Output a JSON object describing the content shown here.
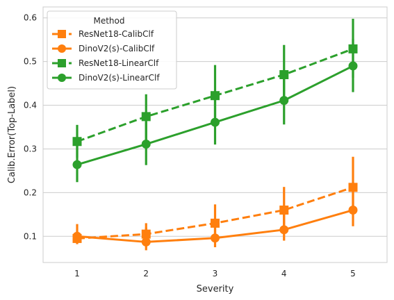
{
  "chart_data": {
    "type": "line",
    "xlabel": "Severity",
    "ylabel": "Calib.Error(Top-Label)",
    "categories": [
      "1",
      "2",
      "3",
      "4",
      "5"
    ],
    "ylim": [
      0.04,
      0.625
    ],
    "yticks": [
      "0.1",
      "0.2",
      "0.3",
      "0.4",
      "0.5",
      "0.6"
    ],
    "grid": "horizontal",
    "legend": {
      "title": "Method",
      "placement": "top-left"
    },
    "series": [
      {
        "name": "ResNet18-CalibClf",
        "color": "#ff7f0e",
        "line": "dashed",
        "marker": "square",
        "values": [
          0.095,
          0.105,
          0.13,
          0.16,
          0.212
        ],
        "ci_low": [
          0.082,
          0.085,
          0.096,
          0.118,
          0.15
        ],
        "ci_high": [
          0.112,
          0.13,
          0.173,
          0.213,
          0.282
        ]
      },
      {
        "name": "DinoV2(s)-CalibClf",
        "color": "#ff7f0e",
        "line": "solid",
        "marker": "circle",
        "values": [
          0.1,
          0.087,
          0.096,
          0.115,
          0.16
        ],
        "ci_low": [
          0.085,
          0.068,
          0.075,
          0.09,
          0.123
        ],
        "ci_high": [
          0.128,
          0.12,
          0.125,
          0.155,
          0.205
        ]
      },
      {
        "name": "ResNet18-LinearClf",
        "color": "#2ca02c",
        "line": "dashed",
        "marker": "square",
        "values": [
          0.317,
          0.374,
          0.422,
          0.47,
          0.529
        ],
        "ci_low": [
          0.28,
          0.315,
          0.35,
          0.4,
          0.463
        ],
        "ci_high": [
          0.355,
          0.425,
          0.492,
          0.538,
          0.598
        ]
      },
      {
        "name": "DinoV2(s)-LinearClf",
        "color": "#2ca02c",
        "line": "solid",
        "marker": "circle",
        "values": [
          0.264,
          0.311,
          0.361,
          0.411,
          0.49
        ],
        "ci_low": [
          0.224,
          0.263,
          0.31,
          0.356,
          0.43
        ],
        "ci_high": [
          0.313,
          0.362,
          0.415,
          0.468,
          0.552
        ]
      }
    ]
  }
}
